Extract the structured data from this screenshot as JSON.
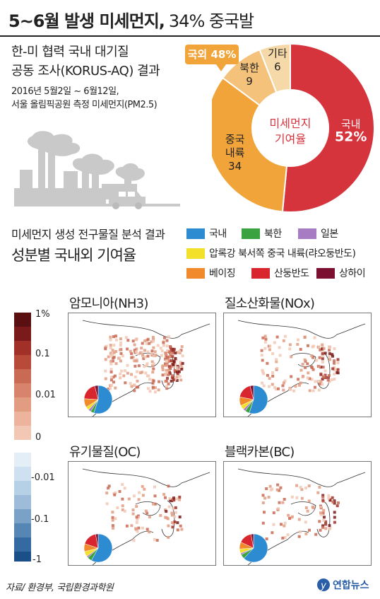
{
  "header": {
    "title_main": "5~6월 발생 미세먼지,",
    "title_sub": "34% 중국발"
  },
  "study": {
    "line1": "한-미 협력 국내 대기질",
    "line2": "공동 조사(KORUS-AQ) 결과",
    "period1": "2016년 5월2일 ~ 6월12일,",
    "period2": "서울 올림픽공원 측정 미세먼지(PM2.5)"
  },
  "colors": {
    "korea": "#d6343c",
    "china": "#f0a43a",
    "north_korea": "#f4c27a",
    "other": "#f6d9a8",
    "callout": "#f0a43a",
    "legend_domestic": "#2d8bd2",
    "legend_north": "#3aa340",
    "legend_japan": "#a77cc2",
    "legend_liaodong": "#f2e02a",
    "legend_beijing": "#f08a2a",
    "legend_shandong": "#d9262e",
    "legend_shanghai": "#7c1030"
  },
  "chart_data": [
    {
      "type": "pie",
      "title": "미세먼지 기여율",
      "slices": [
        {
          "label": "국내",
          "value": 52,
          "display": "52%"
        },
        {
          "label": "중국 내륙",
          "value": 34,
          "display": "34"
        },
        {
          "label": "북한",
          "value": 9,
          "display": "9"
        },
        {
          "label": "기타",
          "value": 6,
          "display": "6"
        }
      ],
      "annotation": "국외 48%"
    }
  ],
  "section2": {
    "line1": "미세먼지 생성 전구물질 분석 결과",
    "line2": "성분별 국내외 기여율"
  },
  "legend": [
    {
      "label": "국내",
      "color": "#2d8bd2"
    },
    {
      "label": "북한",
      "color": "#3aa340"
    },
    {
      "label": "일본",
      "color": "#a77cc2"
    },
    {
      "label": "압록강 북서쪽 중국 내륙(랴오둥반도)",
      "color": "#f2e02a"
    },
    {
      "label": "베이징",
      "color": "#f08a2a"
    },
    {
      "label": "산둥반도",
      "color": "#d9262e"
    },
    {
      "label": "상하이",
      "color": "#7c1030"
    }
  ],
  "maps": [
    {
      "title": "암모니아(NH3)",
      "scale": "positive"
    },
    {
      "title": "질소산화물(NOx)",
      "scale": "positive"
    },
    {
      "title": "유기물질(OC)",
      "scale": "negative"
    },
    {
      "title": "블랙카본(BC)",
      "scale": "negative"
    }
  ],
  "colorbar_positive": {
    "labels": [
      "1%",
      "0.1",
      "0.01"
    ]
  },
  "colorbar_negative": {
    "labels": [
      "0",
      "-0.01",
      "-0.1",
      "-1"
    ]
  },
  "footer": {
    "source": "자료/ 환경부, 국립환경과학원",
    "logo": "연합뉴스"
  }
}
